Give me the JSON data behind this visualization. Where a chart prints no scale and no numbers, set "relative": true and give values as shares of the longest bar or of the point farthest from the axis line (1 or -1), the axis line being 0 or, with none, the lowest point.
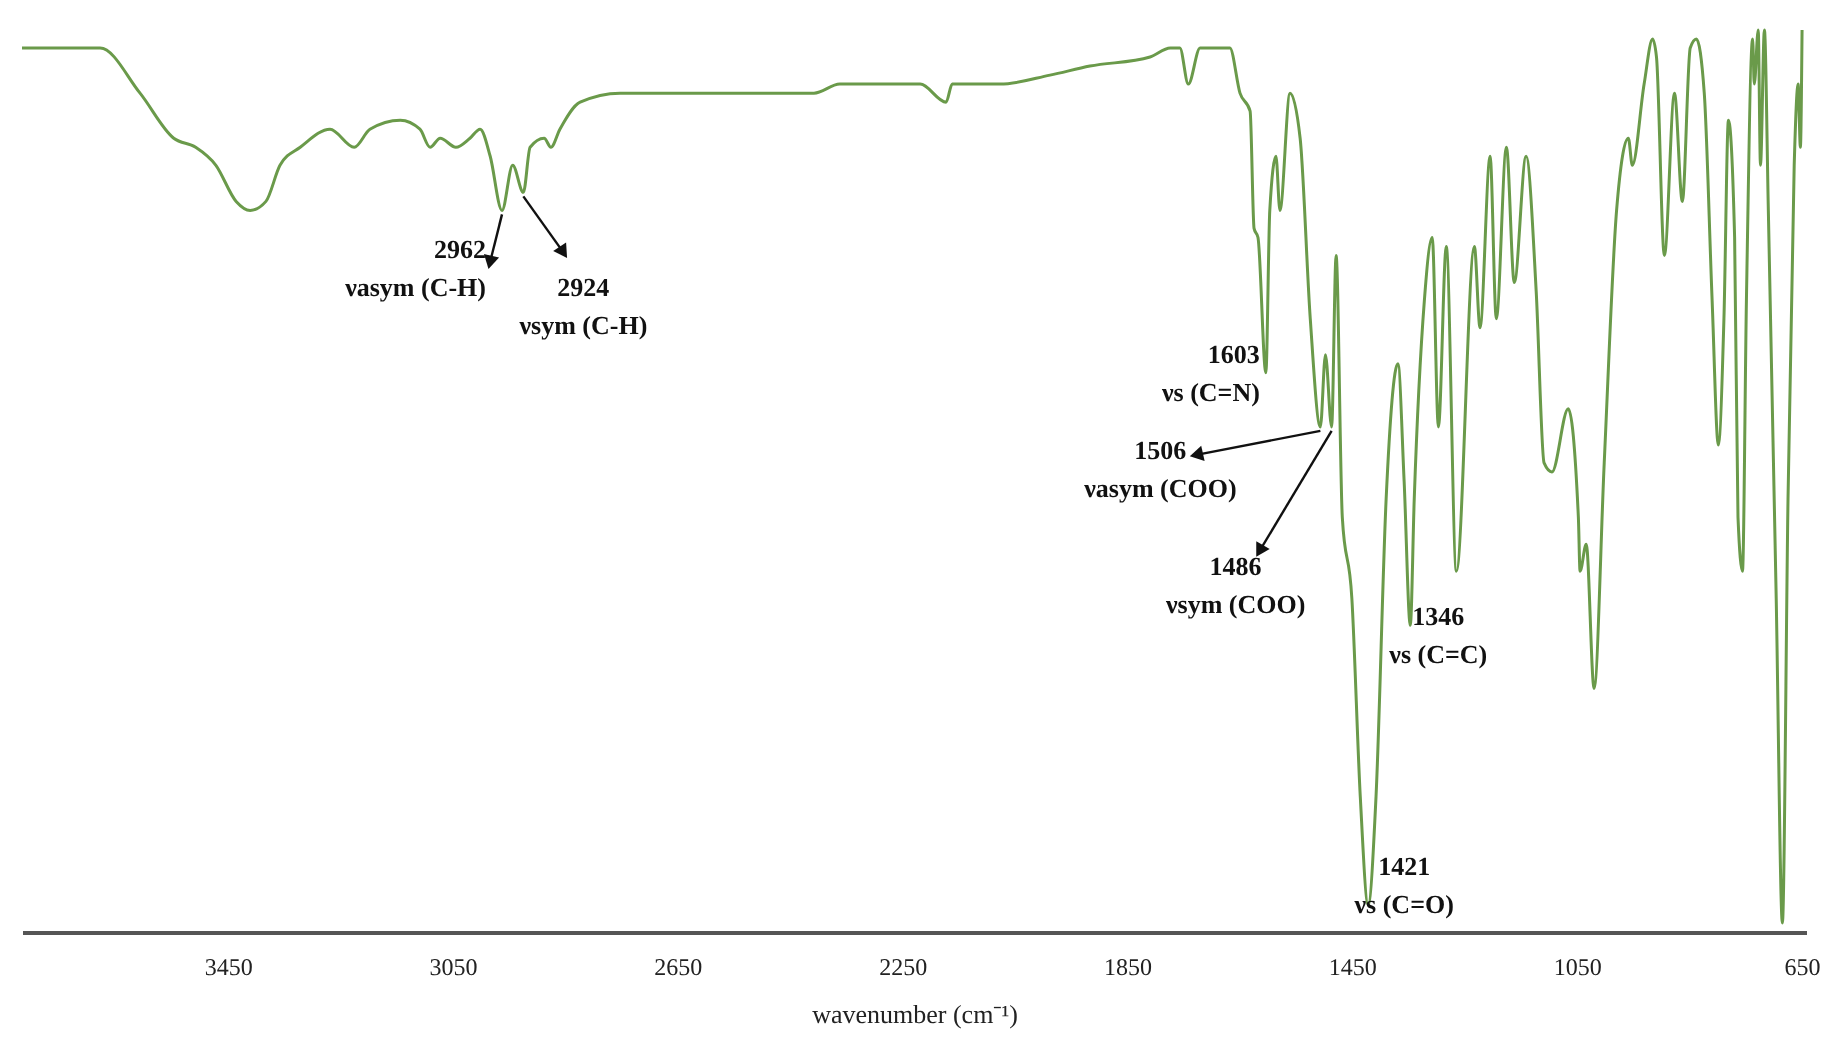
{
  "chart_data": {
    "type": "line",
    "relative": true,
    "xlabel": "wavenumber (cm⁻¹)",
    "xlim": [
      3816,
      642
    ],
    "xticks": [
      3450,
      3050,
      2650,
      2250,
      1850,
      1450,
      1050,
      650
    ],
    "x": [
      3816,
      3713,
      3677,
      3606,
      3546,
      3507,
      3471,
      3435,
      3410,
      3382,
      3357,
      3321,
      3268,
      3225,
      3197,
      3143,
      3108,
      3090,
      3072,
      3044,
      3019,
      3001,
      2983,
      2962,
      2943,
      2924,
      2912,
      2887,
      2875,
      2859,
      2823,
      2752,
      2681,
      2610,
      2432,
      2407,
      2361,
      2289,
      2218,
      2172,
      2161,
      2076,
      1987,
      1916,
      1809,
      1773,
      1756,
      1741,
      1720,
      1684,
      1667,
      1649,
      1631,
      1624,
      1617,
      1603,
      1596,
      1585,
      1578,
      1560,
      1542,
      1524,
      1506,
      1497,
      1486,
      1478,
      1467,
      1450,
      1435,
      1421,
      1407,
      1389,
      1368,
      1357,
      1346,
      1339,
      1321,
      1307,
      1296,
      1282,
      1264,
      1232,
      1222,
      1204,
      1193,
      1175,
      1161,
      1140,
      1122,
      1108,
      1094,
      1065,
      1047,
      1044,
      1033,
      1019,
      1001,
      979,
      958,
      951,
      930,
      915,
      908,
      894,
      876,
      862,
      848,
      837,
      823,
      809,
      798,
      788,
      780,
      769,
      763,
      755,
      748,
      737,
      734,
      727,
      723,
      716,
      709,
      695,
      684,
      674,
      663,
      656,
      652,
      649
    ],
    "series": [
      {
        "color": "#6a9a4a",
        "values": [
          0.98,
          0.98,
          0.98,
          0.93,
          0.88,
          0.87,
          0.85,
          0.81,
          0.8,
          0.81,
          0.85,
          0.87,
          0.89,
          0.87,
          0.89,
          0.9,
          0.89,
          0.87,
          0.88,
          0.87,
          0.88,
          0.89,
          0.86,
          0.8,
          0.85,
          0.82,
          0.87,
          0.88,
          0.87,
          0.89,
          0.92,
          0.93,
          0.93,
          0.93,
          0.93,
          0.93,
          0.94,
          0.94,
          0.94,
          0.92,
          0.94,
          0.94,
          0.95,
          0.96,
          0.97,
          0.98,
          0.98,
          0.94,
          0.98,
          0.98,
          0.98,
          0.93,
          0.91,
          0.78,
          0.77,
          0.62,
          0.8,
          0.86,
          0.8,
          0.93,
          0.88,
          0.68,
          0.56,
          0.64,
          0.56,
          0.75,
          0.46,
          0.37,
          0.15,
          0.03,
          0.15,
          0.48,
          0.63,
          0.5,
          0.34,
          0.48,
          0.7,
          0.77,
          0.56,
          0.76,
          0.4,
          0.76,
          0.67,
          0.86,
          0.68,
          0.87,
          0.72,
          0.86,
          0.71,
          0.52,
          0.51,
          0.58,
          0.46,
          0.4,
          0.43,
          0.27,
          0.52,
          0.8,
          0.88,
          0.85,
          0.94,
          0.99,
          0.97,
          0.75,
          0.93,
          0.81,
          0.98,
          0.99,
          0.93,
          0.7,
          0.54,
          0.68,
          0.9,
          0.77,
          0.46,
          0.4,
          0.7,
          0.99,
          0.94,
          1.0,
          0.85,
          1.0,
          0.8,
          0.37,
          0.01,
          0.48,
          0.85,
          0.94,
          0.87,
          1.0
        ]
      }
    ],
    "annotations": [
      {
        "text": "2962\nνasym (C-H)",
        "x": 2962,
        "y": 0.8
      },
      {
        "text": "2924\nνsym (C-H)",
        "x": 2924,
        "y": 0.82
      },
      {
        "text": "1603\nνs (C=N)",
        "x": 1603,
        "y": 0.62
      },
      {
        "text": "1506\nνasym (COO)",
        "x": 1506,
        "y": 0.56
      },
      {
        "text": "1486\nνsym (COO)",
        "x": 1486,
        "y": 0.56
      },
      {
        "text": "1346\nνs (C=C)",
        "x": 1346,
        "y": 0.34
      },
      {
        "text": "1421\nνs (C=O)",
        "x": 1421,
        "y": 0.03
      }
    ]
  }
}
